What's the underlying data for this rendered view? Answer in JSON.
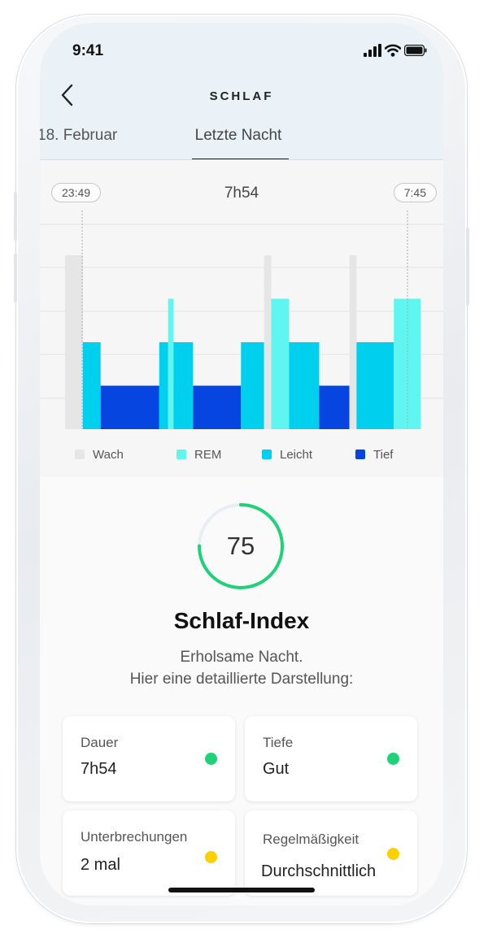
{
  "status_bar": {
    "time": "9:41"
  },
  "nav": {
    "title": "SCHLAF",
    "tab_prev": "18. Februar",
    "tab_active": "Letzte Nacht"
  },
  "chart_header": {
    "start_time": "23:49",
    "end_time": "7:45",
    "duration": "7h54"
  },
  "colors": {
    "wach": "#e6e6e6",
    "rem": "#5ff5f0",
    "leicht": "#00cfee",
    "tief": "#0745e0",
    "ring": "#1fd27a",
    "dot_green": "#1fd27a",
    "dot_yellow": "#fdd000"
  },
  "chart_data": {
    "type": "bar",
    "stages": [
      "Wach",
      "REM",
      "Leicht",
      "Tief"
    ],
    "levels": {
      "Wach": 4,
      "REM": 3,
      "Leicht": 2,
      "Tief": 1
    },
    "grid": true,
    "segments": [
      {
        "stage": "Wach",
        "start": 0.0,
        "end": 0.05
      },
      {
        "stage": "Leicht",
        "start": 0.05,
        "end": 0.1
      },
      {
        "stage": "Tief",
        "start": 0.1,
        "end": 0.265
      },
      {
        "stage": "Leicht",
        "start": 0.265,
        "end": 0.29
      },
      {
        "stage": "REM",
        "start": 0.29,
        "end": 0.305
      },
      {
        "stage": "Leicht",
        "start": 0.305,
        "end": 0.36
      },
      {
        "stage": "Tief",
        "start": 0.36,
        "end": 0.495
      },
      {
        "stage": "Leicht",
        "start": 0.495,
        "end": 0.56
      },
      {
        "stage": "Wach",
        "start": 0.56,
        "end": 0.58
      },
      {
        "stage": "REM",
        "start": 0.58,
        "end": 0.63
      },
      {
        "stage": "Leicht",
        "start": 0.63,
        "end": 0.715
      },
      {
        "stage": "Tief",
        "start": 0.715,
        "end": 0.8
      },
      {
        "stage": "Wach",
        "start": 0.8,
        "end": 0.82
      },
      {
        "stage": "Leicht",
        "start": 0.82,
        "end": 0.925
      },
      {
        "stage": "REM",
        "start": 0.925,
        "end": 1.0
      }
    ]
  },
  "legend": [
    {
      "label": "Wach",
      "color": "#e6e6e6"
    },
    {
      "label": "REM",
      "color": "#5ff5f0"
    },
    {
      "label": "Leicht",
      "color": "#00cfee"
    },
    {
      "label": "Tief",
      "color": "#0745e0"
    }
  ],
  "score": {
    "value": "75",
    "progress": 0.75,
    "title": "Schlaf-Index",
    "desc_line1": "Erholsame Nacht.",
    "desc_line2": "Hier eine detaillierte Darstellung:"
  },
  "metrics": [
    {
      "label": "Dauer",
      "value": "7h54",
      "status": "green"
    },
    {
      "label": "Tiefe",
      "value": "Gut",
      "status": "green"
    },
    {
      "label": "Unterbrechungen",
      "value": "2 mal",
      "status": "yellow"
    },
    {
      "label": "Regelmäßigkeit",
      "value": "Durchschnittlich",
      "status": "yellow"
    }
  ]
}
